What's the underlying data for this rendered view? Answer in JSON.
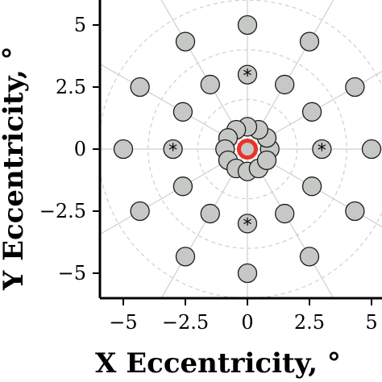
{
  "chart_data": {
    "type": "scatter",
    "xlabel": "X Eccentricity, °",
    "ylabel": "Y Eccentricity, °",
    "xlim": [
      -6,
      6
    ],
    "ylim": [
      -6,
      6
    ],
    "xticks": [
      -5,
      -2.5,
      0,
      2.5,
      5
    ],
    "yticks": [
      -5,
      -2.5,
      0,
      2.5,
      5
    ],
    "xtick_labels": [
      "−5",
      "−2.5",
      "0",
      "2.5",
      "5"
    ],
    "ytick_labels": [
      "−5",
      "−2.5",
      "0",
      "2.5",
      "5"
    ],
    "polar_grid": {
      "radii": [
        2,
        4,
        6
      ],
      "spoke_angles_deg": [
        0,
        30,
        60,
        90,
        120,
        150,
        180,
        210,
        240,
        270,
        300,
        330
      ]
    },
    "points": [
      {
        "x": -5,
        "y": 0
      },
      {
        "x": 5,
        "y": 0
      },
      {
        "x": 0,
        "y": 5
      },
      {
        "x": 0,
        "y": -5
      },
      {
        "x": -2.5,
        "y": 4.33
      },
      {
        "x": 2.5,
        "y": 4.33
      },
      {
        "x": -2.5,
        "y": -4.33
      },
      {
        "x": 2.5,
        "y": -4.33
      },
      {
        "x": -4.33,
        "y": 2.5
      },
      {
        "x": 4.33,
        "y": 2.5
      },
      {
        "x": -4.33,
        "y": -2.5
      },
      {
        "x": 4.33,
        "y": -2.5
      },
      {
        "x": -1.5,
        "y": 2.6
      },
      {
        "x": 1.5,
        "y": 2.6
      },
      {
        "x": -1.5,
        "y": -2.6
      },
      {
        "x": 1.5,
        "y": -2.6
      },
      {
        "x": -2.6,
        "y": 1.5
      },
      {
        "x": 2.6,
        "y": 1.5
      },
      {
        "x": -2.6,
        "y": -1.5
      },
      {
        "x": 2.6,
        "y": -1.5
      },
      {
        "x": 0,
        "y": 3
      },
      {
        "x": 0,
        "y": -3
      },
      {
        "x": -3,
        "y": 0
      },
      {
        "x": 3,
        "y": 0
      },
      {
        "x": 0.9,
        "y": 0
      },
      {
        "x": 0.78,
        "y": 0.45
      },
      {
        "x": 0.45,
        "y": 0.78
      },
      {
        "x": 0,
        "y": 0.9
      },
      {
        "x": -0.45,
        "y": 0.78
      },
      {
        "x": -0.78,
        "y": 0.45
      },
      {
        "x": -0.9,
        "y": 0
      },
      {
        "x": -0.78,
        "y": -0.45
      },
      {
        "x": -0.45,
        "y": -0.78
      },
      {
        "x": 0,
        "y": -0.9
      },
      {
        "x": 0.45,
        "y": -0.78
      },
      {
        "x": 0.78,
        "y": -0.45
      },
      {
        "x": 0,
        "y": 0
      }
    ],
    "starred_points": [
      {
        "x": 0,
        "y": 3
      },
      {
        "x": 0,
        "y": -3
      },
      {
        "x": -3,
        "y": 0
      },
      {
        "x": 3,
        "y": 0
      }
    ],
    "star_marker": "*",
    "highlight_point": {
      "x": 0,
      "y": 0
    },
    "colors": {
      "marker_fill": "#c6c8c5",
      "marker_edge": "#1c1c1c",
      "highlight": "#e8322b",
      "grid": "#cfcfcf"
    }
  }
}
